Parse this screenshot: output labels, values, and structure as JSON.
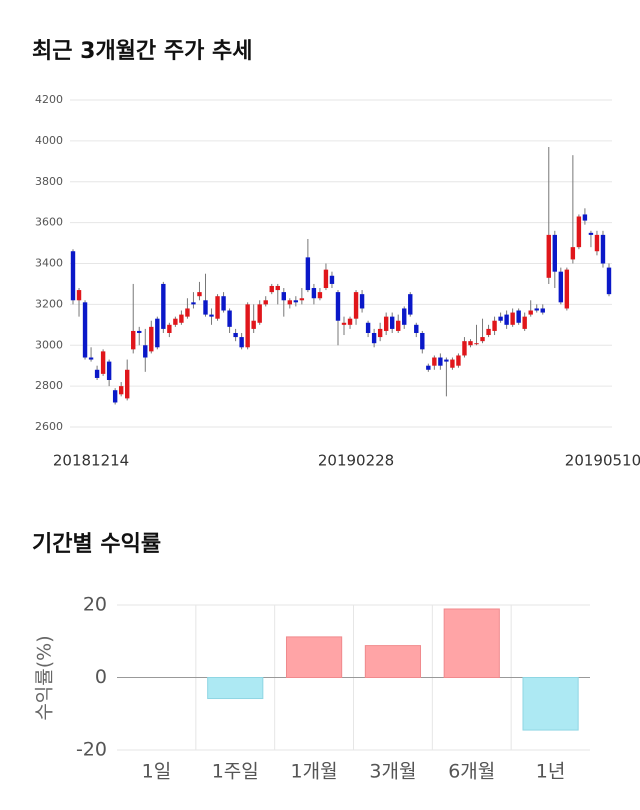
{
  "chart_data": [
    {
      "type": "candlestick",
      "title": "최근 3개월간 주가 추세",
      "categories": [
        null,
        null,
        null,
        "20181214",
        null,
        null,
        null,
        null,
        null,
        null,
        null,
        null,
        null,
        null,
        null,
        null,
        null,
        null,
        null,
        null,
        null,
        null,
        null,
        null,
        null,
        null,
        null,
        null,
        null,
        null,
        null,
        null,
        null,
        null,
        null,
        null,
        null,
        null,
        null,
        null,
        null,
        null,
        null,
        null,
        null,
        null,
        null,
        "20190228",
        null,
        null,
        null,
        null,
        null,
        null,
        null,
        null,
        null,
        null,
        null,
        null,
        null,
        null,
        null,
        null,
        null,
        null,
        null,
        null,
        null,
        null,
        null,
        null,
        null,
        null,
        null,
        null,
        null,
        null,
        null,
        null,
        null,
        null,
        null,
        null,
        null,
        null,
        null,
        null,
        "20190510",
        null
      ],
      "open": [
        3460,
        3220,
        3210,
        2940,
        2880,
        2860,
        2920,
        2780,
        2760,
        2740,
        2980,
        3070,
        3000,
        2970,
        3130,
        3300,
        3060,
        3100,
        3110,
        3140,
        3210,
        3240,
        3220,
        3150,
        3130,
        3240,
        3170,
        3060,
        3040,
        2990,
        3080,
        3110,
        3200,
        3260,
        3270,
        3260,
        3200,
        3220,
        3220,
        3430,
        3280,
        3230,
        3280,
        3340,
        3260,
        3100,
        3100,
        3130,
        3250,
        3110,
        3060,
        3040,
        3070,
        3140,
        3070,
        3180,
        3250,
        3100,
        3060,
        2900,
        2900,
        2940,
        2930,
        2890,
        2900,
        2950,
        3000,
        3010,
        3020,
        3050,
        3070,
        3140,
        3150,
        3100,
        3170,
        3080,
        3150,
        3180,
        3180,
        3330,
        3540,
        3360,
        3180,
        3420,
        3480,
        3640,
        3550,
        3460,
        3540,
        3380
      ],
      "high": [
        3470,
        3280,
        3220,
        2990,
        2900,
        2980,
        2930,
        2790,
        2820,
        2930,
        3300,
        3090,
        3080,
        3120,
        3140,
        3310,
        3110,
        3140,
        3170,
        3230,
        3260,
        3310,
        3350,
        3180,
        3250,
        3260,
        3180,
        3080,
        3060,
        3210,
        3200,
        3220,
        3240,
        3300,
        3300,
        3280,
        3230,
        3240,
        3280,
        3520,
        3300,
        3280,
        3400,
        3360,
        3270,
        3140,
        3140,
        3270,
        3270,
        3120,
        3080,
        3110,
        3160,
        3160,
        3150,
        3190,
        3260,
        3110,
        3070,
        2910,
        2950,
        2960,
        2940,
        2940,
        2960,
        3040,
        3030,
        3100,
        3130,
        3100,
        3140,
        3160,
        3170,
        3180,
        3180,
        3160,
        3220,
        3200,
        3200,
        3970,
        3560,
        3380,
        3380,
        3930,
        3640,
        3670,
        3560,
        3560,
        3560,
        3400
      ],
      "low": [
        3200,
        3140,
        2930,
        2920,
        2830,
        2850,
        2800,
        2710,
        2750,
        2730,
        2960,
        3000,
        2870,
        2960,
        2980,
        3060,
        3040,
        3090,
        3100,
        3130,
        3180,
        3220,
        3140,
        3100,
        3120,
        3160,
        3060,
        3020,
        2980,
        2980,
        3060,
        3100,
        3190,
        3250,
        3200,
        3140,
        3180,
        3190,
        3200,
        3260,
        3200,
        3220,
        3270,
        3280,
        3000,
        3050,
        3080,
        3100,
        3160,
        3040,
        2990,
        3020,
        3050,
        3060,
        3060,
        3080,
        3140,
        3040,
        2960,
        2870,
        2880,
        2880,
        2750,
        2880,
        2890,
        2940,
        2990,
        3000,
        3010,
        3040,
        3050,
        3110,
        3080,
        3090,
        3100,
        3070,
        3140,
        3160,
        3150,
        3300,
        3280,
        3200,
        3170,
        3400,
        3470,
        3590,
        3480,
        3440,
        3380,
        3240
      ],
      "close": [
        3220,
        3270,
        2940,
        2930,
        2840,
        2970,
        2830,
        2720,
        2800,
        2880,
        3070,
        3060,
        2940,
        3090,
        2990,
        3080,
        3100,
        3130,
        3150,
        3180,
        3200,
        3260,
        3150,
        3140,
        3240,
        3170,
        3090,
        3040,
        2990,
        3200,
        3120,
        3200,
        3220,
        3290,
        3290,
        3220,
        3220,
        3210,
        3230,
        3270,
        3230,
        3260,
        3370,
        3300,
        3120,
        3110,
        3130,
        3260,
        3180,
        3060,
        3010,
        3080,
        3140,
        3080,
        3120,
        3100,
        3150,
        3060,
        2980,
        2880,
        2940,
        2900,
        2920,
        2930,
        2950,
        3020,
        3020,
        3010,
        3040,
        3080,
        3120,
        3120,
        3100,
        3160,
        3110,
        3140,
        3170,
        3170,
        3160,
        3540,
        3360,
        3210,
        3370,
        3480,
        3630,
        3610,
        3540,
        3540,
        3400,
        3250
      ],
      "up_color": "#e0161b",
      "down_color": "#0a18c8",
      "ylim": [
        2600,
        4200
      ],
      "yticks": [
        2600,
        2800,
        3000,
        3200,
        3400,
        3600,
        3800,
        4000,
        4200
      ],
      "grid": true
    },
    {
      "type": "bar",
      "title": "기간별 수익률",
      "ylabel": "수익률(%)",
      "categories": [
        "1일",
        "1주일",
        "1개월",
        "3개월",
        "6개월",
        "1년"
      ],
      "values": [
        0,
        -5.8,
        11.2,
        8.8,
        18.9,
        -14.5
      ],
      "pos_color": "#ffa4a6",
      "neg_color": "#ade9f3",
      "ylim": [
        -20,
        20
      ],
      "yticks": [
        -20,
        0,
        20
      ],
      "grid": true
    }
  ]
}
